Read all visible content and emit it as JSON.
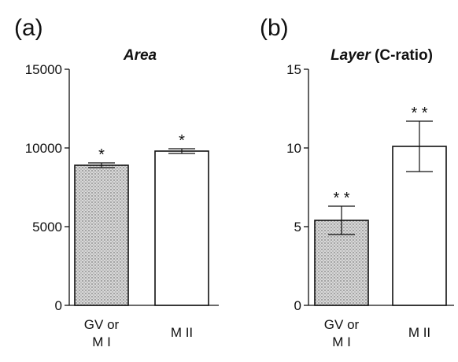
{
  "chart_data": [
    {
      "type": "bar",
      "panel": "(a)",
      "title": "Area",
      "title_suffix": "",
      "categories": [
        [
          "GV or",
          "M I"
        ],
        [
          "M II"
        ]
      ],
      "values": [
        8900,
        9800
      ],
      "errors": [
        150,
        150
      ],
      "significance": [
        "*",
        "*"
      ],
      "bar_fills": [
        "stipple",
        "#ffffff"
      ],
      "ylim": [
        0,
        15000
      ],
      "yticks": [
        0,
        5000,
        10000,
        15000
      ],
      "xlabel": "",
      "ylabel": ""
    },
    {
      "type": "bar",
      "panel": "(b)",
      "title": "Layer",
      "title_suffix": " (C-ratio)",
      "categories": [
        [
          "GV or",
          "M I"
        ],
        [
          "M II"
        ]
      ],
      "values": [
        5.4,
        10.1
      ],
      "errors": [
        0.9,
        1.6
      ],
      "significance": [
        "* *",
        "* *"
      ],
      "bar_fills": [
        "stipple",
        "#ffffff"
      ],
      "ylim": [
        0,
        15
      ],
      "yticks": [
        0,
        5,
        10,
        15
      ],
      "xlabel": "",
      "ylabel": ""
    }
  ]
}
